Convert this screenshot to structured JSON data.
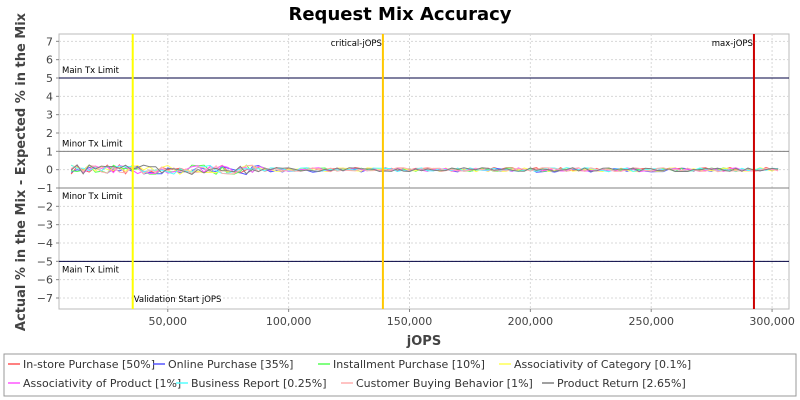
{
  "chart_data": {
    "type": "line",
    "title": "Request Mix Accuracy",
    "xlabel": "jOPS",
    "ylabel": "Actual % in the Mix - Expected % in the Mix",
    "xlim": [
      5000,
      307000
    ],
    "ylim": [
      -7.6,
      7.4
    ],
    "x_ticks": [
      50000,
      100000,
      150000,
      200000,
      250000,
      300000
    ],
    "x_tick_labels": [
      "50,000",
      "100,000",
      "150,000",
      "200,000",
      "250,000",
      "300,000"
    ],
    "y_ticks": [
      -7,
      -6,
      -5,
      -4,
      -3,
      -2,
      -1,
      0,
      1,
      2,
      3,
      4,
      5,
      6,
      7
    ],
    "y_tick_labels": [
      "−7",
      "−6",
      "−5",
      "−4",
      "−3",
      "−2",
      "−1",
      "0",
      "1",
      "2",
      "3",
      "4",
      "5",
      "6",
      "7"
    ],
    "grid": true,
    "legend_position": "bottom",
    "series": [
      {
        "name": "In-store Purchase [50%]",
        "color": "#ff5555"
      },
      {
        "name": "Online Purchase [35%]",
        "color": "#5555ff"
      },
      {
        "name": "Installment Purchase [10%]",
        "color": "#55ff55"
      },
      {
        "name": "Associativity of Category [0.1%]",
        "color": "#ffff55"
      },
      {
        "name": "Associativity of Product [1%]",
        "color": "#ff55ff"
      },
      {
        "name": "Business Report [0.25%]",
        "color": "#55ffff"
      },
      {
        "name": "Customer Buying Behavior [1%]",
        "color": "#ffafaf"
      },
      {
        "name": "Product Return [2.65%]",
        "color": "#808080"
      }
    ],
    "x_start": 10000,
    "x_step": 2500,
    "x_count": 118,
    "horizontal_lines": [
      {
        "label": "Main Tx Limit",
        "y": 5,
        "color": "#000040"
      },
      {
        "label": "Minor Tx Limit",
        "y": 1,
        "color": "#808080"
      },
      {
        "label": "Minor Tx Limit",
        "y": -1,
        "color": "#808080"
      },
      {
        "label": "Main Tx Limit",
        "y": -5,
        "color": "#000040"
      }
    ],
    "vertical_lines": [
      {
        "label": "Validation Start jOPS",
        "x": 35500,
        "color": "#ffff00"
      },
      {
        "label": "critical-jOPS",
        "x": 139000,
        "color": "#ffc800"
      },
      {
        "label": "max-jOPS",
        "x": 292500,
        "color": "#cc0000"
      }
    ]
  }
}
